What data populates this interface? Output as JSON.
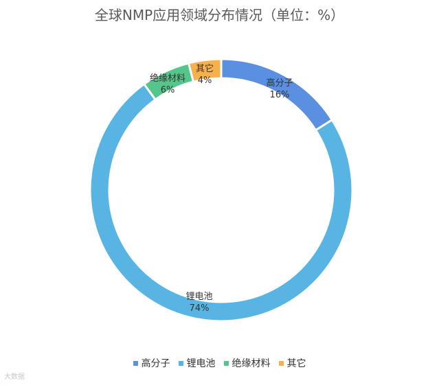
{
  "chart_data": {
    "type": "pie",
    "variant": "donut",
    "title": "全球NMP应用领域分布情况（单位：%）",
    "unit": "%",
    "slices": [
      {
        "label": "高分子",
        "value": 16,
        "value_label": "16%",
        "color": "#5b8fe0"
      },
      {
        "label": "锂电池",
        "value": 74,
        "value_label": "74%",
        "color": "#58b5e3"
      },
      {
        "label": "绝缘材料",
        "value": 6,
        "value_label": "6%",
        "color": "#55c68b"
      },
      {
        "label": "其它",
        "value": 4,
        "value_label": "4%",
        "color": "#f5b14d"
      }
    ],
    "legend_position": "bottom"
  },
  "watermark": "大数据"
}
